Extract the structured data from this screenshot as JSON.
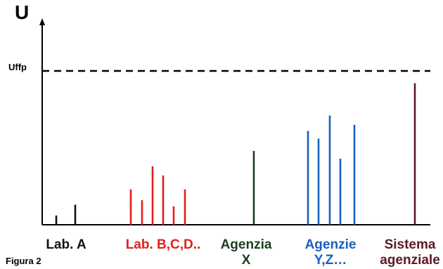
{
  "y_axis_label": "U",
  "reference_label": "Uffp",
  "figure_caption": "Figura 2",
  "colors": {
    "lab_a": "#111111",
    "lab_bcd": "#e0201d",
    "agenzia_x": "#1e3d1e",
    "agenzie_yz": "#1a5fc4",
    "sistema": "#5a1a24"
  },
  "groups": [
    {
      "key": "lab_a",
      "label_lines": [
        "Lab. A"
      ],
      "values": [
        0.06,
        0.13
      ]
    },
    {
      "key": "lab_bcd",
      "label_lines": [
        "Lab. B,C,D.."
      ],
      "values": [
        0.23,
        0.16,
        0.38,
        0.32,
        0.12,
        0.23
      ]
    },
    {
      "key": "agenzia_x",
      "label_lines": [
        "Agenzia",
        "X"
      ],
      "values": [
        0.48
      ]
    },
    {
      "key": "agenzie_yz",
      "label_lines": [
        "Agenzie",
        "Y,Z…"
      ],
      "values": [
        0.61,
        0.56,
        0.71,
        0.43,
        0.65
      ]
    },
    {
      "key": "sistema",
      "label_lines": [
        "Sistema",
        "agenziale"
      ],
      "values": [
        0.92
      ]
    }
  ],
  "reference_level": 1.0
}
